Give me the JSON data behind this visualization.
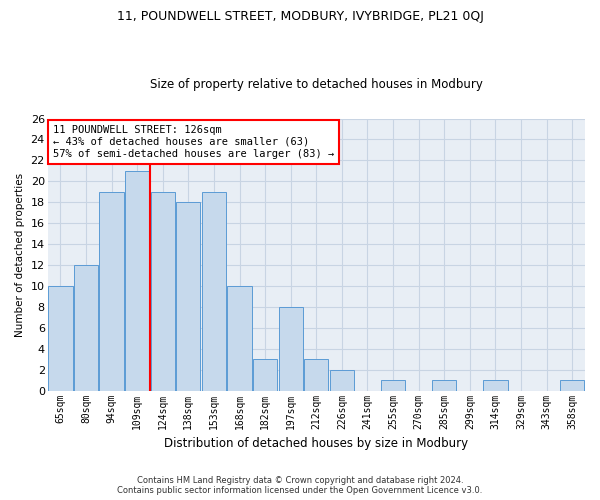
{
  "title1": "11, POUNDWELL STREET, MODBURY, IVYBRIDGE, PL21 0QJ",
  "title2": "Size of property relative to detached houses in Modbury",
  "xlabel": "Distribution of detached houses by size in Modbury",
  "ylabel": "Number of detached properties",
  "categories": [
    "65sqm",
    "80sqm",
    "94sqm",
    "109sqm",
    "124sqm",
    "138sqm",
    "153sqm",
    "168sqm",
    "182sqm",
    "197sqm",
    "212sqm",
    "226sqm",
    "241sqm",
    "255sqm",
    "270sqm",
    "285sqm",
    "299sqm",
    "314sqm",
    "329sqm",
    "343sqm",
    "358sqm"
  ],
  "values": [
    10,
    12,
    19,
    21,
    19,
    18,
    19,
    10,
    3,
    8,
    3,
    2,
    0,
    1,
    0,
    1,
    0,
    1,
    0,
    0,
    1
  ],
  "bar_color": "#c6d9ec",
  "bar_edge_color": "#5b9bd5",
  "red_line_after_index": 3,
  "annotation_line1": "11 POUNDWELL STREET: 126sqm",
  "annotation_line2": "← 43% of detached houses are smaller (63)",
  "annotation_line3": "57% of semi-detached houses are larger (83) →",
  "annotation_box_color": "white",
  "annotation_box_edge_color": "red",
  "red_line_color": "red",
  "ylim": [
    0,
    26
  ],
  "yticks": [
    0,
    2,
    4,
    6,
    8,
    10,
    12,
    14,
    16,
    18,
    20,
    22,
    24,
    26
  ],
  "grid_color": "#c8d4e3",
  "background_color": "#e8eef5",
  "title1_fontsize": 9,
  "title2_fontsize": 8.5,
  "footer_line1": "Contains HM Land Registry data © Crown copyright and database right 2024.",
  "footer_line2": "Contains public sector information licensed under the Open Government Licence v3.0."
}
